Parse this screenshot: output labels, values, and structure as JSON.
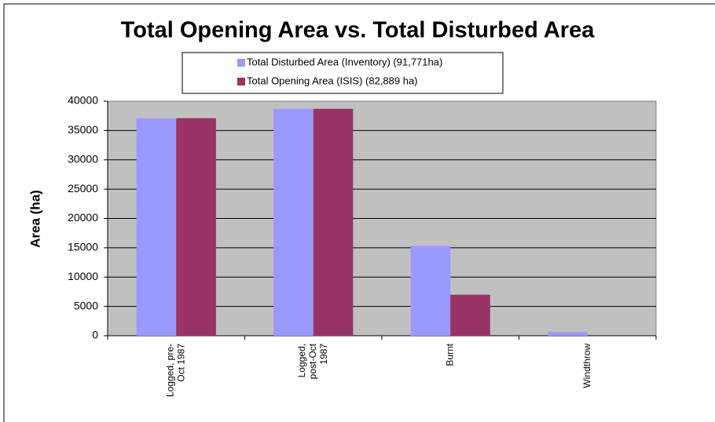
{
  "chart_data": {
    "type": "bar",
    "title": "Total Opening Area vs. Total Disturbed Area",
    "y_label": "Area (ha)",
    "categories": [
      "Logged, pre-\nOct 1987",
      "Logged,\npost-Oct\n1987",
      "Burnt",
      "Windthrow"
    ],
    "series": [
      {
        "name": "Total Disturbed Area (Inventory) (91,771ha)",
        "color": "#9999ff",
        "values": [
          37100,
          38700,
          15300,
          600
        ]
      },
      {
        "name": "Total Opening Area (ISIS) (82,889 ha)",
        "color": "#993366",
        "values": [
          37100,
          38700,
          7000,
          0
        ]
      }
    ],
    "ylim": [
      0,
      40000
    ],
    "yticks": [
      0,
      5000,
      10000,
      15000,
      20000,
      25000,
      30000,
      35000,
      40000
    ],
    "grid": true
  }
}
